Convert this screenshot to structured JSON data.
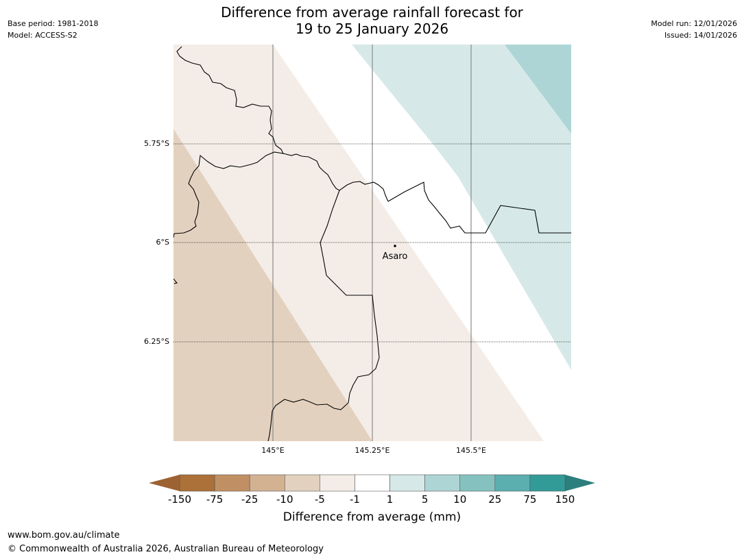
{
  "title": {
    "line1": "Difference from average rainfall forecast for",
    "line2": "19 to 25 January 2026"
  },
  "meta": {
    "base_period": "Base period: 1981-2018",
    "model": "Model: ACCESS-S2",
    "model_run": "Model run: 12/01/2026",
    "issued": "Issued: 14/01/2026"
  },
  "map": {
    "lat_labels": [
      "5.75°S",
      "6°S",
      "6.25°S"
    ],
    "lon_labels": [
      "145°E",
      "145.25°E",
      "145.5°E"
    ],
    "place": {
      "name": "Asaro",
      "lat": -6.02,
      "lon": 145.305
    }
  },
  "colorbar": {
    "ticks": [
      "-150",
      "-75",
      "-25",
      "-10",
      "-5",
      "-1",
      "1",
      "5",
      "10",
      "25",
      "75",
      "150"
    ],
    "colors": [
      "#ab7139",
      "#c09064",
      "#d3b292",
      "#e3d1bf",
      "#f4ede7",
      "#ffffff",
      "#d6e9e8",
      "#aed5d5",
      "#85c1bf",
      "#5bafae",
      "#329b98"
    ],
    "extend_low_color": "#9c6232",
    "extend_high_color": "#2b7f7c",
    "label": "Difference from average (mm)"
  },
  "footer": {
    "url": "www.bom.gov.au/climate",
    "copyright": "© Commonwealth of Australia 2026, Australian Bureau of Meteorology"
  }
}
